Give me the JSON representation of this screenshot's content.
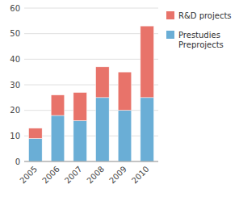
{
  "chart_data": {
    "type": "bar",
    "stacked": true,
    "categories": [
      "2005",
      "2006",
      "2007",
      "2008",
      "2009",
      "2010"
    ],
    "series": [
      {
        "name": "Prestudies\nPreprojects",
        "color": "#6aaed6",
        "values": [
          9,
          18,
          16,
          25,
          20,
          25
        ]
      },
      {
        "name": "R&D projects",
        "color": "#e8736a",
        "values": [
          4,
          8,
          11,
          12,
          15,
          28
        ]
      }
    ],
    "ylim": [
      0,
      60
    ],
    "yticks": [
      0,
      10,
      20,
      30,
      40,
      50,
      60
    ],
    "grid": true,
    "legend": "right"
  }
}
